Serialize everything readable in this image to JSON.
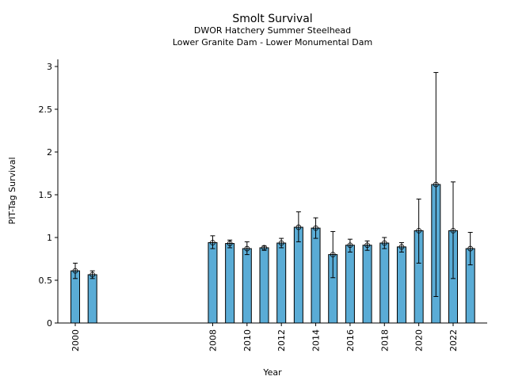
{
  "chart_data": {
    "type": "bar",
    "title": "Smolt Survival",
    "subtitle": [
      "DWOR Hatchery Summer Steelhead",
      "Lower Granite Dam - Lower Monumental Dam"
    ],
    "xlabel": "Year",
    "ylabel": "PIT-Tag Survival",
    "ylim": [
      0,
      3.08
    ],
    "xlim": [
      1998.9,
      2024.0
    ],
    "yticks": [
      0,
      0.5,
      1,
      1.5,
      2,
      2.5,
      3
    ],
    "ytick_labels": [
      "0",
      "0.5",
      "1",
      "1.5",
      "2",
      "2.5",
      "3"
    ],
    "xticks": [
      2000,
      2008,
      2010,
      2012,
      2014,
      2016,
      2018,
      2020,
      2022
    ],
    "grid": false,
    "bar_color": "#5aacd6",
    "x": [
      2000,
      2001,
      2008,
      2009,
      2010,
      2011,
      2012,
      2013,
      2014,
      2015,
      2016,
      2017,
      2018,
      2019,
      2020,
      2021,
      2022,
      2023
    ],
    "values": [
      0.61,
      0.565,
      0.94,
      0.93,
      0.87,
      0.88,
      0.935,
      1.12,
      1.11,
      0.8,
      0.91,
      0.91,
      0.935,
      0.89,
      1.08,
      1.62,
      1.08,
      0.87
    ],
    "upper": [
      0.7,
      0.61,
      1.02,
      0.97,
      0.95,
      0.9,
      0.99,
      1.3,
      1.23,
      1.07,
      0.98,
      0.96,
      1.0,
      0.94,
      1.45,
      2.93,
      1.65,
      1.06
    ],
    "lower": [
      0.52,
      0.52,
      0.87,
      0.88,
      0.8,
      0.85,
      0.88,
      0.95,
      0.99,
      0.53,
      0.83,
      0.85,
      0.87,
      0.83,
      0.7,
      0.31,
      0.52,
      0.68
    ]
  }
}
